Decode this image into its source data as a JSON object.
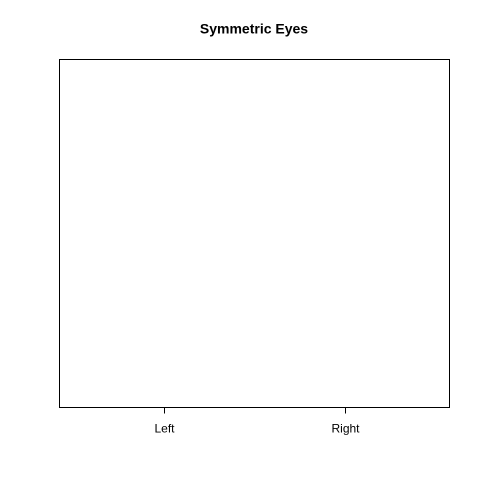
{
  "chart_data": {
    "type": "scatter",
    "title": "Symmetric Eyes",
    "categories": [
      "Left",
      "Right"
    ]
  }
}
